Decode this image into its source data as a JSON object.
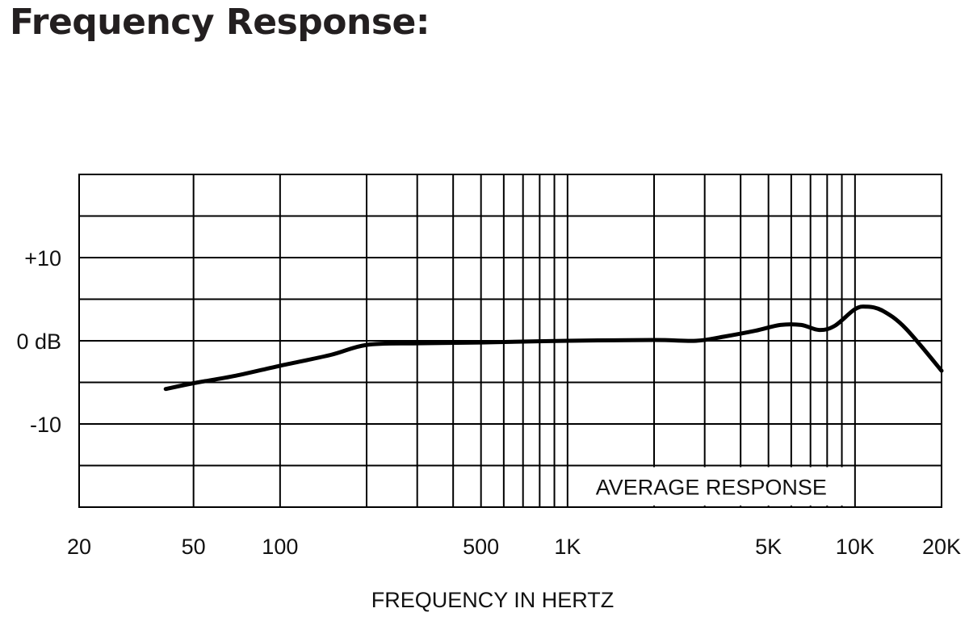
{
  "page": {
    "title": "Frequency Response:"
  },
  "chart_data": {
    "type": "line",
    "xlabel": "FREQUENCY IN HERTZ",
    "ylabel": "",
    "x_scale": "log",
    "xlim": [
      20,
      20000
    ],
    "ylim": [
      -20,
      20
    ],
    "grid": true,
    "x_tick_labels": [
      {
        "value": 20,
        "label": "20"
      },
      {
        "value": 50,
        "label": "50"
      },
      {
        "value": 100,
        "label": "100"
      },
      {
        "value": 500,
        "label": "500"
      },
      {
        "value": 1000,
        "label": "1K"
      },
      {
        "value": 5000,
        "label": "5K"
      },
      {
        "value": 10000,
        "label": "10K"
      },
      {
        "value": 20000,
        "label": "20K"
      }
    ],
    "y_tick_labels": [
      {
        "value": 10,
        "label": "+10"
      },
      {
        "value": 0,
        "label": "0 dB"
      },
      {
        "value": -10,
        "label": "-10"
      }
    ],
    "x_grid_values": [
      20,
      50,
      100,
      200,
      300,
      400,
      500,
      600,
      700,
      800,
      900,
      1000,
      2000,
      3000,
      4000,
      5000,
      6000,
      7000,
      8000,
      9000,
      10000,
      20000
    ],
    "y_grid_values": [
      -20,
      -15,
      -10,
      -5,
      0,
      5,
      10,
      15,
      20
    ],
    "annotation": "AVERAGE RESPONSE",
    "series": [
      {
        "x": [
          40,
          50,
          70,
          100,
          150,
          200,
          300,
          500,
          1000,
          2000,
          2800,
          3500,
          4500,
          5500,
          6500,
          7500,
          8500,
          10000,
          11000,
          12500,
          15000,
          20000
        ],
        "y": [
          -5.8,
          -5.1,
          -4.2,
          -3.0,
          -1.7,
          -0.5,
          -0.3,
          -0.2,
          0.0,
          0.1,
          0.0,
          0.5,
          1.2,
          1.9,
          1.9,
          1.3,
          1.8,
          3.8,
          4.1,
          3.6,
          1.5,
          -3.6
        ]
      }
    ]
  }
}
